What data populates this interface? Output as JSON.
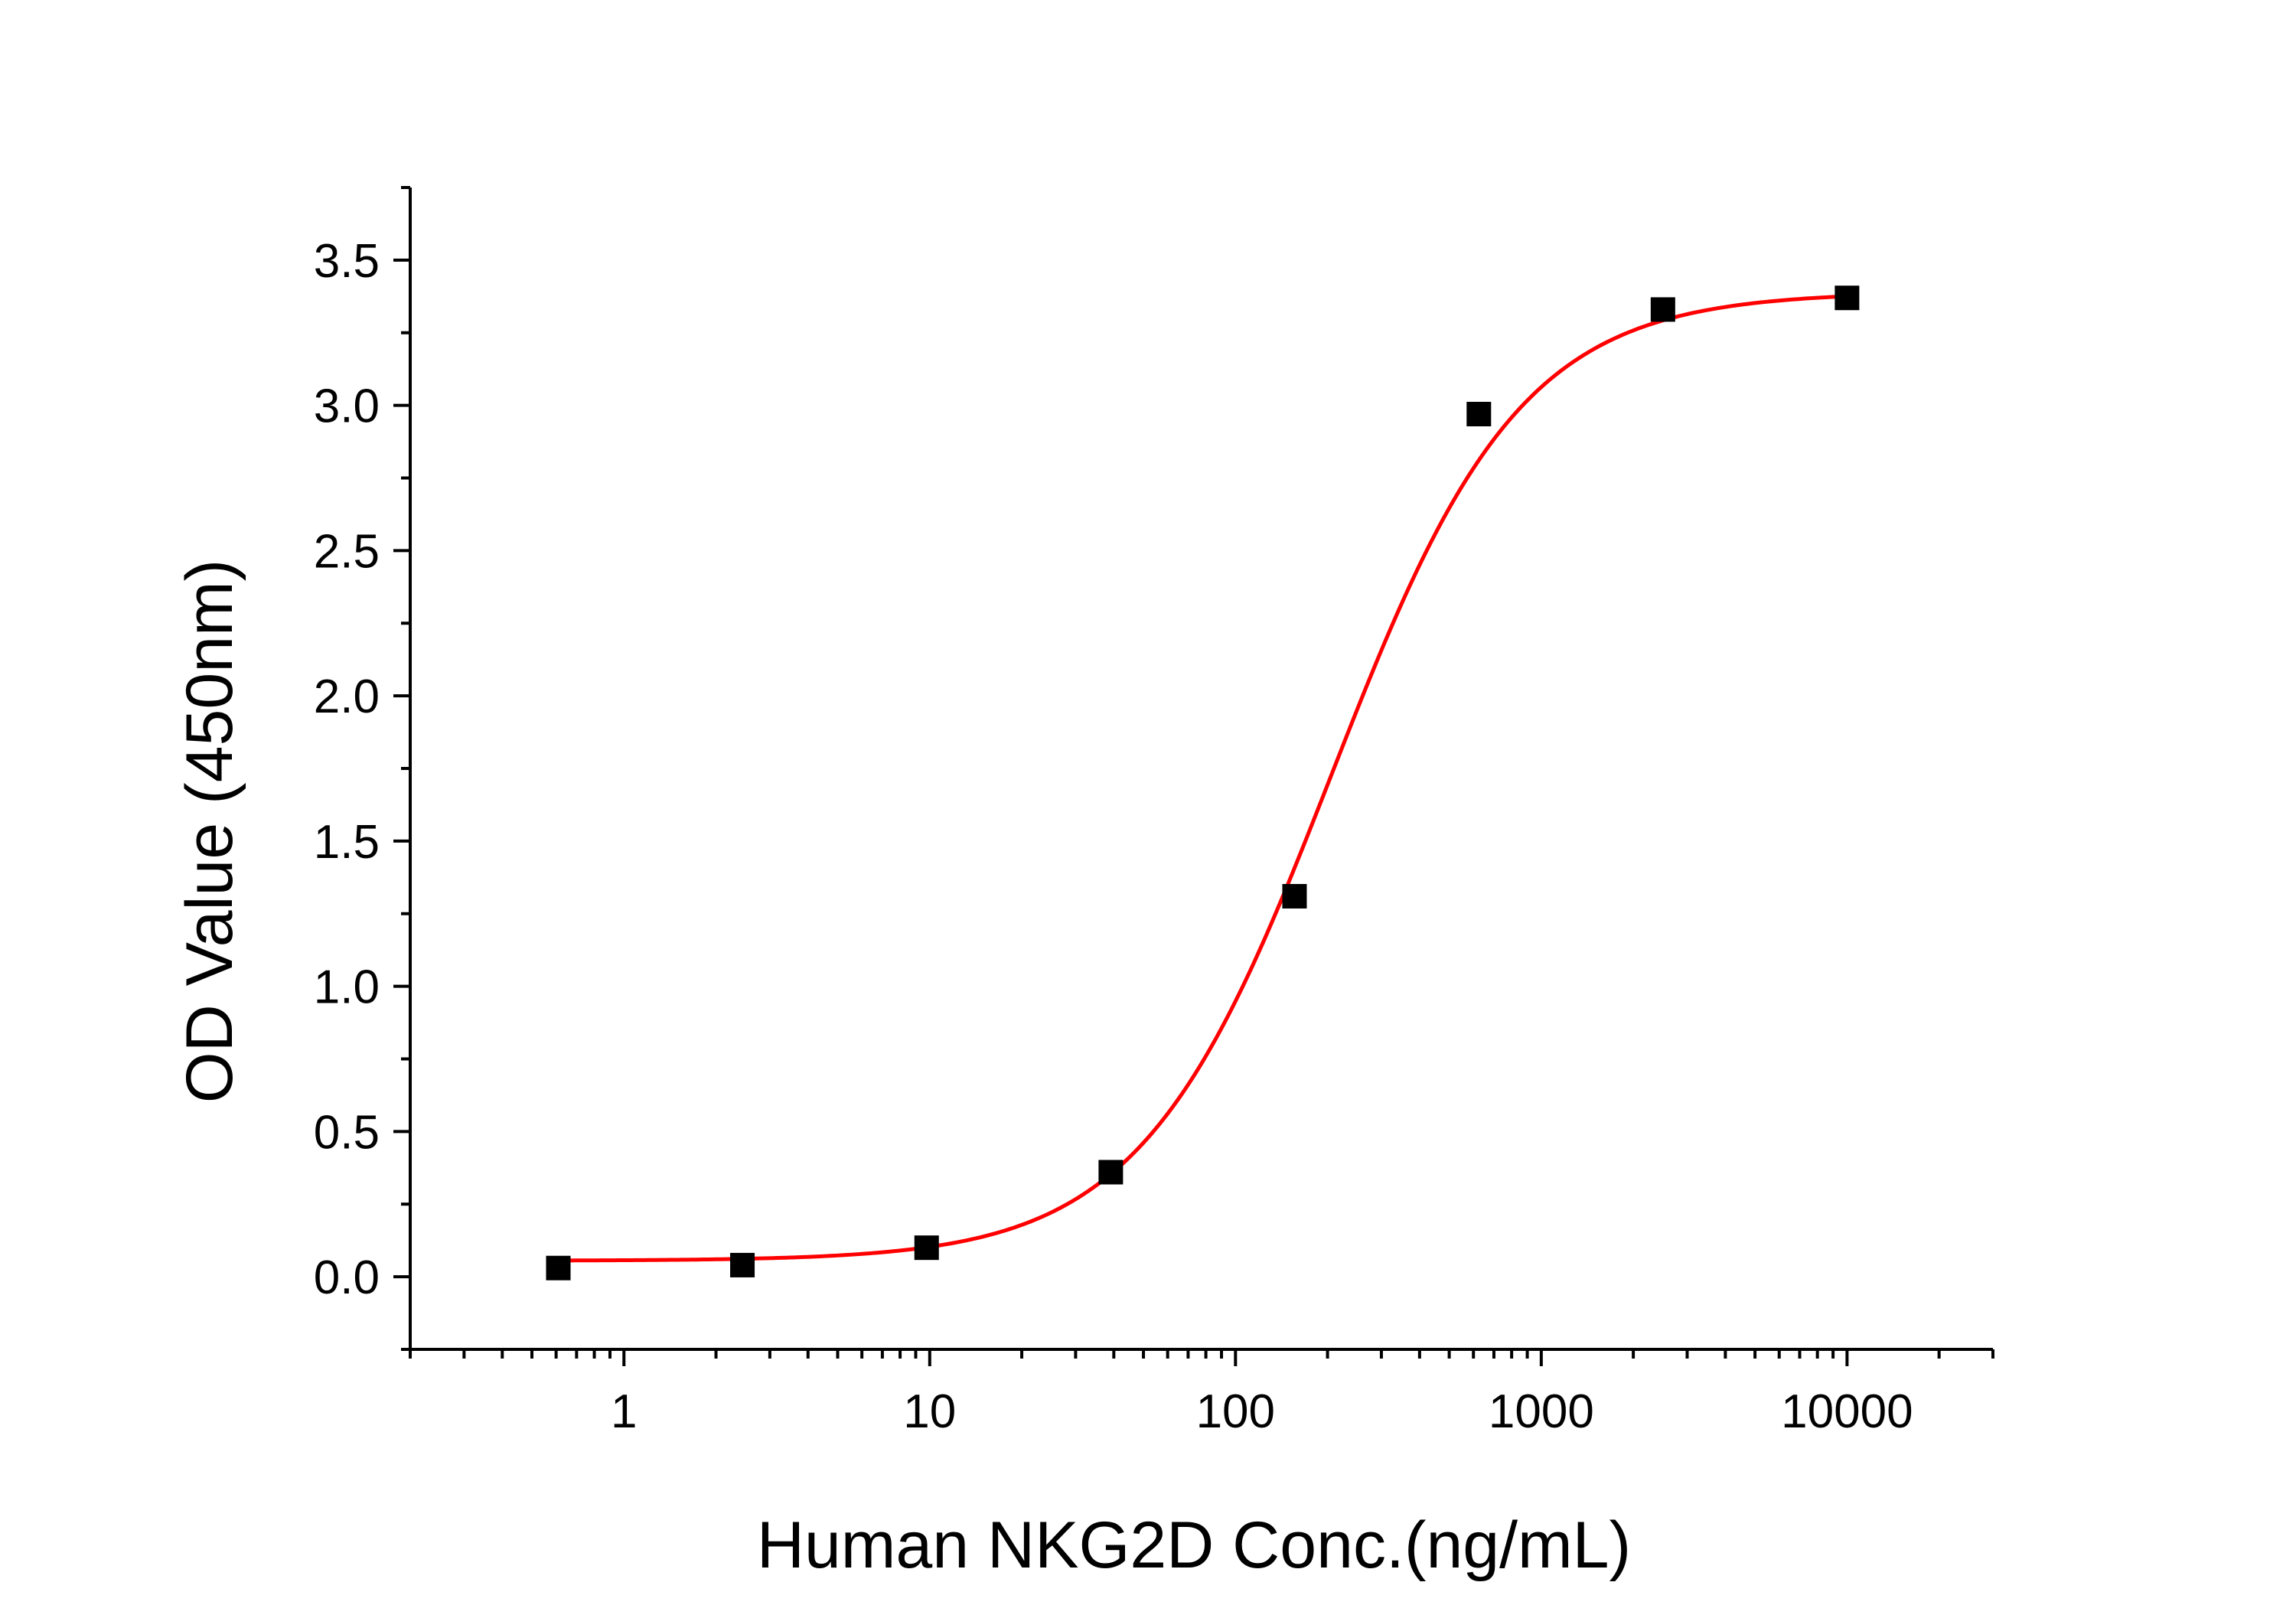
{
  "chart_data": {
    "type": "scatter",
    "title": "",
    "xlabel": "Human NKG2D Conc.(ng/mL)",
    "ylabel": "OD Value (450nm)",
    "x_scale": "log",
    "xlim": [
      0.2,
      30000
    ],
    "ylim": [
      -0.25,
      3.75
    ],
    "x_ticks": [
      1,
      10,
      100,
      1000,
      10000
    ],
    "x_tick_labels": [
      "1",
      "10",
      "100",
      "1000",
      "10000"
    ],
    "y_ticks": [
      0.0,
      0.5,
      1.0,
      1.5,
      2.0,
      2.5,
      3.0,
      3.5
    ],
    "y_tick_labels": [
      "0.0",
      "0.5",
      "1.0",
      "1.5",
      "2.0",
      "2.5",
      "3.0",
      "3.5"
    ],
    "grid": false,
    "legend": "none",
    "colors": {
      "points": "#000000",
      "fit": "#ff0000",
      "axes": "#000000"
    },
    "series": [
      {
        "marker": "square",
        "x": [
          0.61,
          2.44,
          9.77,
          39.1,
          156,
          625,
          2500,
          10000
        ],
        "y": [
          0.03,
          0.04,
          0.1,
          0.36,
          1.31,
          2.97,
          3.33,
          3.37
        ]
      }
    ],
    "fit": {
      "model": "4PL",
      "bottom": 0.055,
      "top": 3.39,
      "ec50": 205,
      "hill": 1.4,
      "x_range": [
        0.61,
        10000
      ]
    }
  }
}
